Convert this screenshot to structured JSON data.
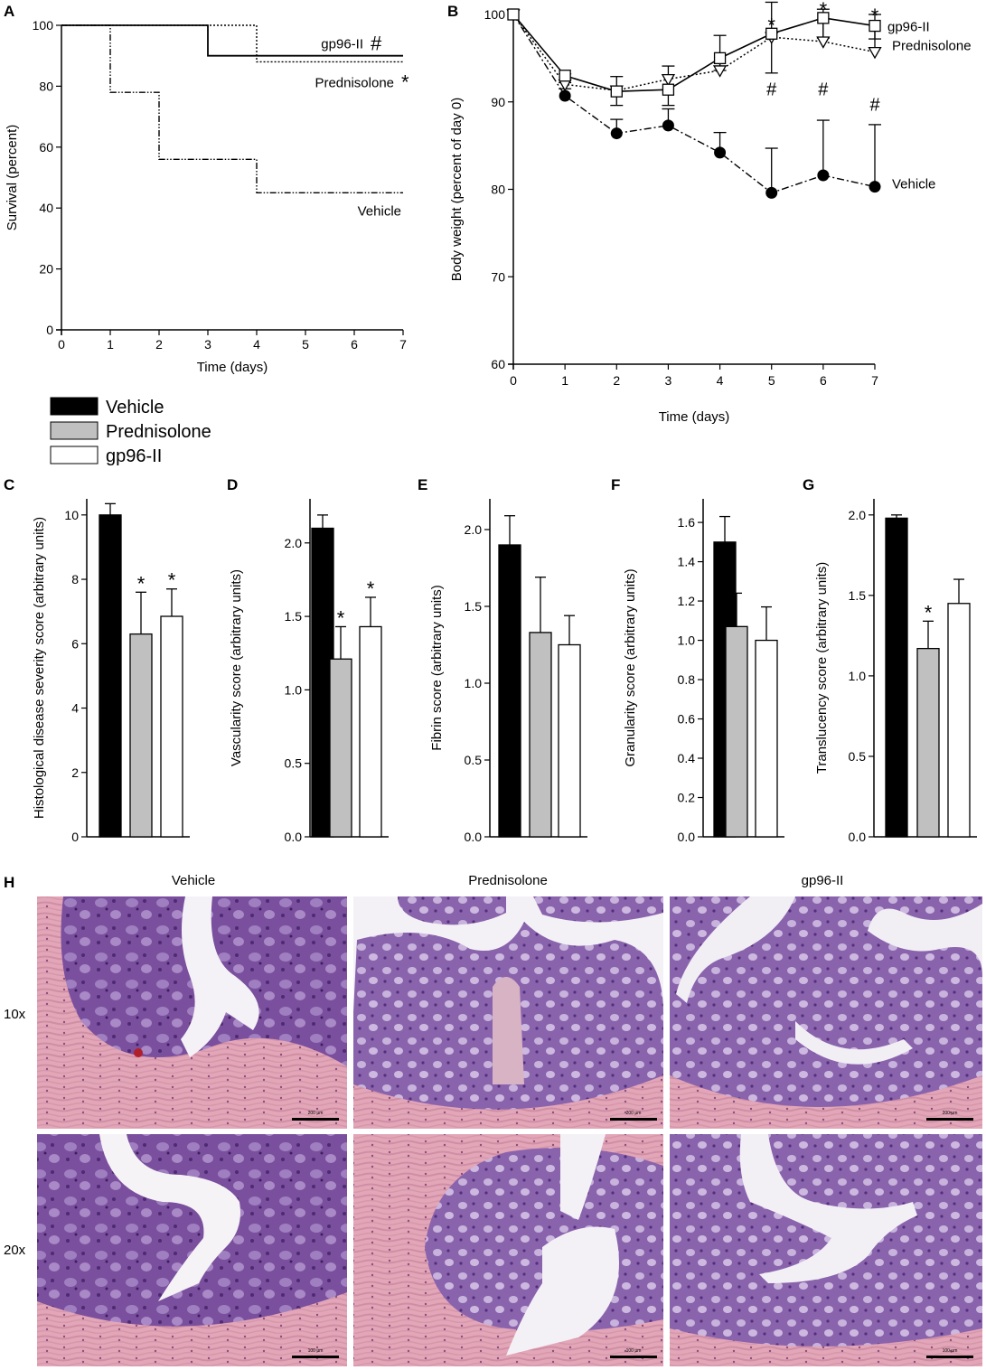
{
  "colors": {
    "vehicle": "#000000",
    "prednisolone": "#c0c0c0",
    "gp96": "#ffffff",
    "stroke": "#000000"
  },
  "legend": {
    "items": [
      {
        "label": "Vehicle",
        "color": "#000000"
      },
      {
        "label": "Prednisolone",
        "color": "#c0c0c0"
      },
      {
        "label": "gp96-II",
        "color": "#ffffff"
      }
    ]
  },
  "panels": {
    "A": "A",
    "B": "B",
    "C": "C",
    "D": "D",
    "E": "E",
    "F": "F",
    "G": "G",
    "H": "H"
  },
  "chart_data": [
    {
      "id": "A",
      "type": "line",
      "style": "survival-step",
      "xlabel": "Time (days)",
      "ylabel": "Survival (percent)",
      "xlim": [
        0,
        7
      ],
      "ylim": [
        0,
        100
      ],
      "xticks": [
        "0",
        "1",
        "2",
        "3",
        "4",
        "5",
        "6",
        "7"
      ],
      "yticks": [
        "0",
        "20",
        "40",
        "60",
        "80",
        "100"
      ],
      "series": [
        {
          "name": "gp96-II",
          "marker": "#",
          "x": [
            0,
            3,
            7
          ],
          "y": [
            100,
            90,
            90
          ]
        },
        {
          "name": "Prednisolone",
          "marker": "*",
          "x": [
            0,
            4,
            7
          ],
          "y": [
            100,
            88,
            88
          ]
        },
        {
          "name": "Vehicle",
          "marker": "",
          "x": [
            0,
            1,
            2,
            4,
            7
          ],
          "y": [
            100,
            78,
            56,
            45,
            45
          ]
        }
      ]
    },
    {
      "id": "B",
      "type": "line",
      "xlabel": "Time (days)",
      "ylabel": "Body weight (percent of day 0)",
      "xlim": [
        0,
        7
      ],
      "ylim": [
        60,
        100
      ],
      "xticks": [
        "0",
        "1",
        "2",
        "3",
        "4",
        "5",
        "6",
        "7"
      ],
      "yticks": [
        "60",
        "70",
        "80",
        "90",
        "100"
      ],
      "x": [
        0,
        1,
        2,
        3,
        4,
        5,
        6,
        7
      ],
      "series": [
        {
          "name": "gp96-II",
          "y": [
            100,
            93,
            91.2,
            91.4,
            95,
            97.8,
            99.6,
            98.7
          ],
          "err": [
            0,
            1.5,
            1.6,
            1.8,
            1.4,
            4.5,
            2.3,
            1.5
          ]
        },
        {
          "name": "Prednisolone",
          "y": [
            100,
            92,
            91.3,
            92.6,
            93.6,
            97.4,
            96.9,
            95.7
          ],
          "err": [
            0,
            1.2,
            1.6,
            1.5,
            4.0,
            4.0,
            3.7,
            4.3
          ]
        },
        {
          "name": "Vehicle",
          "y": [
            100,
            90.7,
            86.4,
            87.3,
            84.2,
            79.6,
            81.6,
            80.3
          ],
          "err": [
            0,
            1.5,
            1.6,
            1.9,
            2.3,
            5.1,
            6.3,
            7.1
          ]
        }
      ],
      "annotations": [
        {
          "x": 5,
          "y": 98.8,
          "text": "*"
        },
        {
          "x": 6,
          "y": 100.6,
          "text": "*"
        },
        {
          "x": 7,
          "y": 99.9,
          "text": "*"
        },
        {
          "x": 5,
          "y": 91.6,
          "text": "#"
        },
        {
          "x": 6,
          "y": 91.6,
          "text": "#"
        },
        {
          "x": 7,
          "y": 89.8,
          "text": "#"
        }
      ]
    },
    {
      "id": "C",
      "type": "bar",
      "ylabel": "Histological disease severity score (arbitrary units)",
      "categories": [
        "Vehicle",
        "Prednisolone",
        "gp96-II"
      ],
      "values": [
        10.0,
        6.3,
        6.85
      ],
      "errors": [
        0.35,
        1.3,
        0.85
      ],
      "ylim": [
        0,
        10.5
      ],
      "yticks": [
        0,
        2,
        4,
        6,
        8,
        10
      ],
      "ytick_labels": [
        "0",
        "2",
        "4",
        "6",
        "8",
        "10"
      ],
      "sig": [
        "",
        "*",
        "*"
      ]
    },
    {
      "id": "D",
      "type": "bar",
      "ylabel": "Vascularity score (arbitrary units)",
      "categories": [
        "Vehicle",
        "Prednisolone",
        "gp96-II"
      ],
      "values": [
        2.1,
        1.21,
        1.43
      ],
      "errors": [
        0.09,
        0.22,
        0.2
      ],
      "ylim": [
        0,
        2.3
      ],
      "yticks": [
        0,
        0.5,
        1,
        1.5,
        2
      ],
      "ytick_labels": [
        "0.0",
        "0.5",
        "1.0",
        "1.5",
        "2.0"
      ],
      "sig": [
        "",
        "*",
        "*"
      ]
    },
    {
      "id": "E",
      "type": "bar",
      "ylabel": "Fibrin score (arbitrary units)",
      "categories": [
        "Vehicle",
        "Prednisolone",
        "gp96-II"
      ],
      "values": [
        1.9,
        1.33,
        1.25
      ],
      "errors": [
        0.19,
        0.36,
        0.19
      ],
      "ylim": [
        0,
        2.2
      ],
      "yticks": [
        0,
        0.5,
        1,
        1.5,
        2
      ],
      "ytick_labels": [
        "0.0",
        "0.5",
        "1.0",
        "1.5",
        "2.0"
      ],
      "sig": [
        "",
        "",
        ""
      ]
    },
    {
      "id": "F",
      "type": "bar",
      "ylabel": "Granularity score (arbitrary units)",
      "categories": [
        "Vehicle",
        "Prednisolone",
        "gp96-II"
      ],
      "values": [
        1.5,
        1.07,
        1.0
      ],
      "errors": [
        0.13,
        0.17,
        0.17
      ],
      "ylim": [
        0,
        1.72
      ],
      "yticks": [
        0,
        0.2,
        0.4,
        0.6,
        0.8,
        1,
        1.2,
        1.4,
        1.6
      ],
      "ytick_labels": [
        "0.0",
        "0.2",
        "0.4",
        "0.6",
        "0.8",
        "1.0",
        "1.2",
        "1.4",
        "1.6"
      ],
      "sig": [
        "",
        "",
        ""
      ]
    },
    {
      "id": "G",
      "type": "bar",
      "ylabel": "Translucency score (arbitrary units)",
      "categories": [
        "Vehicle",
        "Prednisolone",
        "gp96-II"
      ],
      "values": [
        1.98,
        1.17,
        1.45
      ],
      "errors": [
        0.02,
        0.17,
        0.15
      ],
      "ylim": [
        0,
        2.1
      ],
      "yticks": [
        0,
        0.5,
        1,
        1.5,
        2
      ],
      "ytick_labels": [
        "0.0",
        "0.5",
        "1.0",
        "1.5",
        "2.0"
      ],
      "sig": [
        "",
        "*",
        ""
      ]
    }
  ],
  "histology": {
    "columns": [
      "Vehicle",
      "Prednisolone",
      "gp96-II"
    ],
    "rows": [
      "10x",
      "20x"
    ],
    "scale_bars": [
      [
        "200 µm",
        "200 µm",
        "200 µm"
      ],
      [
        "100 µm",
        "100 µm",
        "100 µm"
      ]
    ]
  }
}
